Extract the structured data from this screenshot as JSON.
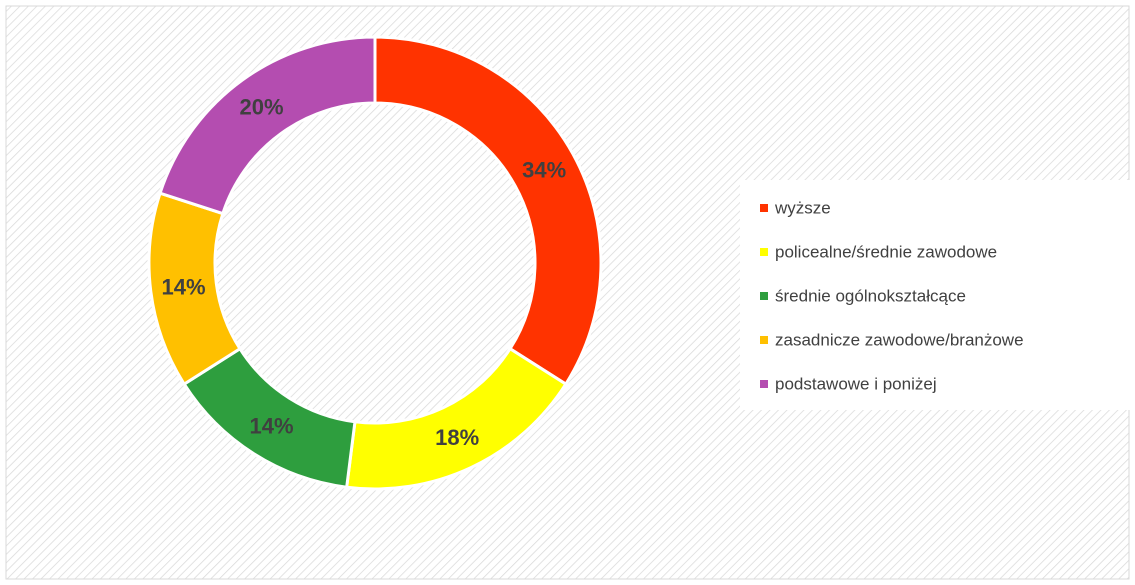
{
  "chart_data": {
    "type": "pie",
    "categories": [
      "wyższe",
      "policealne/średnie zawodowe",
      "średnie ogólnokształcące",
      "zasadnicze zawodowe/branżowe",
      "podstawowe i poniżej"
    ],
    "values": [
      34,
      18,
      14,
      14,
      20
    ],
    "value_labels": [
      "34%",
      "18%",
      "14%",
      "14%",
      "20%"
    ],
    "colors": [
      "#ff3300",
      "#ffff00",
      "#2e9e3e",
      "#ffc000",
      "#b44db0"
    ],
    "legend": "right"
  }
}
